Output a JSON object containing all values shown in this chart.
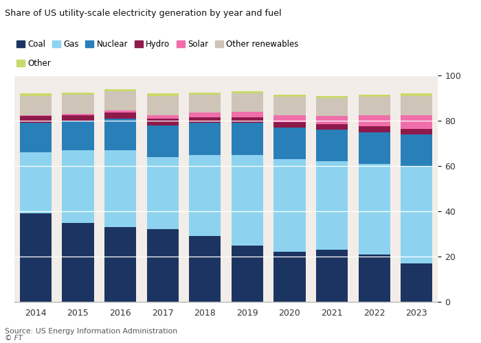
{
  "years": [
    2014,
    2015,
    2016,
    2017,
    2018,
    2019,
    2020,
    2021,
    2022,
    2023
  ],
  "series": {
    "Coal": [
      39,
      35,
      33,
      32,
      29,
      25,
      22,
      23,
      21,
      17
    ],
    "Gas": [
      27,
      32,
      34,
      32,
      36,
      40,
      41,
      39,
      40,
      43
    ],
    "Nuclear": [
      13,
      13,
      14,
      14,
      14,
      14,
      14,
      14,
      14,
      14
    ],
    "Hydro": [
      3,
      2.5,
      2.5,
      3,
      2.5,
      2.5,
      2.5,
      2.5,
      2.5,
      2.5
    ],
    "Solar": [
      0.5,
      0.6,
      1.0,
      1.5,
      2.0,
      2.5,
      3.0,
      3.5,
      5.0,
      6.0
    ],
    "Other renewables": [
      8.5,
      8.4,
      8.5,
      8.5,
      8.0,
      8.0,
      8.0,
      8.0,
      8.0,
      8.5
    ],
    "Other": [
      1.0,
      1.0,
      1.0,
      1.0,
      1.0,
      1.0,
      1.0,
      1.0,
      1.0,
      1.0
    ]
  },
  "colors": {
    "Coal": "#1c3461",
    "Gas": "#8dd3f0",
    "Nuclear": "#2980b9",
    "Hydro": "#8e1a4b",
    "Solar": "#f06eaa",
    "Other renewables": "#cec5b8",
    "Other": "#cad96b"
  },
  "title": "Share of US utility-scale electricity generation by year and fuel",
  "source": "Source: US Energy Information Administration",
  "ft_label": "© FT",
  "ylim": [
    0,
    100
  ],
  "yticks": [
    0,
    20,
    40,
    60,
    80,
    100
  ],
  "bg_color": "#f2ede8",
  "fig_bg": "#ffffff",
  "grid_color": "#ffffff",
  "legend_order": [
    "Coal",
    "Gas",
    "Nuclear",
    "Hydro",
    "Solar",
    "Other renewables",
    "Other"
  ]
}
